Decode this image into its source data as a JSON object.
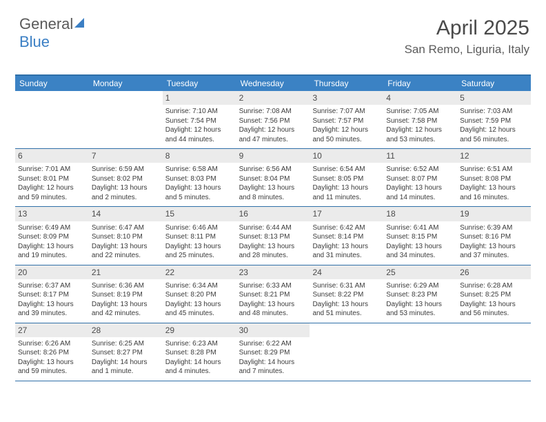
{
  "logo": {
    "part1": "General",
    "part2": "Blue"
  },
  "title": "April 2025",
  "location": "San Remo, Liguria, Italy",
  "colors": {
    "header_bg": "#3b82c4",
    "header_border": "#2f6fa8",
    "daynum_bg": "#ebebeb",
    "text": "#3a3a3a"
  },
  "day_headers": [
    "Sunday",
    "Monday",
    "Tuesday",
    "Wednesday",
    "Thursday",
    "Friday",
    "Saturday"
  ],
  "weeks": [
    [
      {
        "n": "",
        "sr": "",
        "ss": "",
        "dl": ""
      },
      {
        "n": "",
        "sr": "",
        "ss": "",
        "dl": ""
      },
      {
        "n": "1",
        "sr": "Sunrise: 7:10 AM",
        "ss": "Sunset: 7:54 PM",
        "dl": "Daylight: 12 hours and 44 minutes."
      },
      {
        "n": "2",
        "sr": "Sunrise: 7:08 AM",
        "ss": "Sunset: 7:56 PM",
        "dl": "Daylight: 12 hours and 47 minutes."
      },
      {
        "n": "3",
        "sr": "Sunrise: 7:07 AM",
        "ss": "Sunset: 7:57 PM",
        "dl": "Daylight: 12 hours and 50 minutes."
      },
      {
        "n": "4",
        "sr": "Sunrise: 7:05 AM",
        "ss": "Sunset: 7:58 PM",
        "dl": "Daylight: 12 hours and 53 minutes."
      },
      {
        "n": "5",
        "sr": "Sunrise: 7:03 AM",
        "ss": "Sunset: 7:59 PM",
        "dl": "Daylight: 12 hours and 56 minutes."
      }
    ],
    [
      {
        "n": "6",
        "sr": "Sunrise: 7:01 AM",
        "ss": "Sunset: 8:01 PM",
        "dl": "Daylight: 12 hours and 59 minutes."
      },
      {
        "n": "7",
        "sr": "Sunrise: 6:59 AM",
        "ss": "Sunset: 8:02 PM",
        "dl": "Daylight: 13 hours and 2 minutes."
      },
      {
        "n": "8",
        "sr": "Sunrise: 6:58 AM",
        "ss": "Sunset: 8:03 PM",
        "dl": "Daylight: 13 hours and 5 minutes."
      },
      {
        "n": "9",
        "sr": "Sunrise: 6:56 AM",
        "ss": "Sunset: 8:04 PM",
        "dl": "Daylight: 13 hours and 8 minutes."
      },
      {
        "n": "10",
        "sr": "Sunrise: 6:54 AM",
        "ss": "Sunset: 8:05 PM",
        "dl": "Daylight: 13 hours and 11 minutes."
      },
      {
        "n": "11",
        "sr": "Sunrise: 6:52 AM",
        "ss": "Sunset: 8:07 PM",
        "dl": "Daylight: 13 hours and 14 minutes."
      },
      {
        "n": "12",
        "sr": "Sunrise: 6:51 AM",
        "ss": "Sunset: 8:08 PM",
        "dl": "Daylight: 13 hours and 16 minutes."
      }
    ],
    [
      {
        "n": "13",
        "sr": "Sunrise: 6:49 AM",
        "ss": "Sunset: 8:09 PM",
        "dl": "Daylight: 13 hours and 19 minutes."
      },
      {
        "n": "14",
        "sr": "Sunrise: 6:47 AM",
        "ss": "Sunset: 8:10 PM",
        "dl": "Daylight: 13 hours and 22 minutes."
      },
      {
        "n": "15",
        "sr": "Sunrise: 6:46 AM",
        "ss": "Sunset: 8:11 PM",
        "dl": "Daylight: 13 hours and 25 minutes."
      },
      {
        "n": "16",
        "sr": "Sunrise: 6:44 AM",
        "ss": "Sunset: 8:13 PM",
        "dl": "Daylight: 13 hours and 28 minutes."
      },
      {
        "n": "17",
        "sr": "Sunrise: 6:42 AM",
        "ss": "Sunset: 8:14 PM",
        "dl": "Daylight: 13 hours and 31 minutes."
      },
      {
        "n": "18",
        "sr": "Sunrise: 6:41 AM",
        "ss": "Sunset: 8:15 PM",
        "dl": "Daylight: 13 hours and 34 minutes."
      },
      {
        "n": "19",
        "sr": "Sunrise: 6:39 AM",
        "ss": "Sunset: 8:16 PM",
        "dl": "Daylight: 13 hours and 37 minutes."
      }
    ],
    [
      {
        "n": "20",
        "sr": "Sunrise: 6:37 AM",
        "ss": "Sunset: 8:17 PM",
        "dl": "Daylight: 13 hours and 39 minutes."
      },
      {
        "n": "21",
        "sr": "Sunrise: 6:36 AM",
        "ss": "Sunset: 8:19 PM",
        "dl": "Daylight: 13 hours and 42 minutes."
      },
      {
        "n": "22",
        "sr": "Sunrise: 6:34 AM",
        "ss": "Sunset: 8:20 PM",
        "dl": "Daylight: 13 hours and 45 minutes."
      },
      {
        "n": "23",
        "sr": "Sunrise: 6:33 AM",
        "ss": "Sunset: 8:21 PM",
        "dl": "Daylight: 13 hours and 48 minutes."
      },
      {
        "n": "24",
        "sr": "Sunrise: 6:31 AM",
        "ss": "Sunset: 8:22 PM",
        "dl": "Daylight: 13 hours and 51 minutes."
      },
      {
        "n": "25",
        "sr": "Sunrise: 6:29 AM",
        "ss": "Sunset: 8:23 PM",
        "dl": "Daylight: 13 hours and 53 minutes."
      },
      {
        "n": "26",
        "sr": "Sunrise: 6:28 AM",
        "ss": "Sunset: 8:25 PM",
        "dl": "Daylight: 13 hours and 56 minutes."
      }
    ],
    [
      {
        "n": "27",
        "sr": "Sunrise: 6:26 AM",
        "ss": "Sunset: 8:26 PM",
        "dl": "Daylight: 13 hours and 59 minutes."
      },
      {
        "n": "28",
        "sr": "Sunrise: 6:25 AM",
        "ss": "Sunset: 8:27 PM",
        "dl": "Daylight: 14 hours and 1 minute."
      },
      {
        "n": "29",
        "sr": "Sunrise: 6:23 AM",
        "ss": "Sunset: 8:28 PM",
        "dl": "Daylight: 14 hours and 4 minutes."
      },
      {
        "n": "30",
        "sr": "Sunrise: 6:22 AM",
        "ss": "Sunset: 8:29 PM",
        "dl": "Daylight: 14 hours and 7 minutes."
      },
      {
        "n": "",
        "sr": "",
        "ss": "",
        "dl": ""
      },
      {
        "n": "",
        "sr": "",
        "ss": "",
        "dl": ""
      },
      {
        "n": "",
        "sr": "",
        "ss": "",
        "dl": ""
      }
    ]
  ]
}
